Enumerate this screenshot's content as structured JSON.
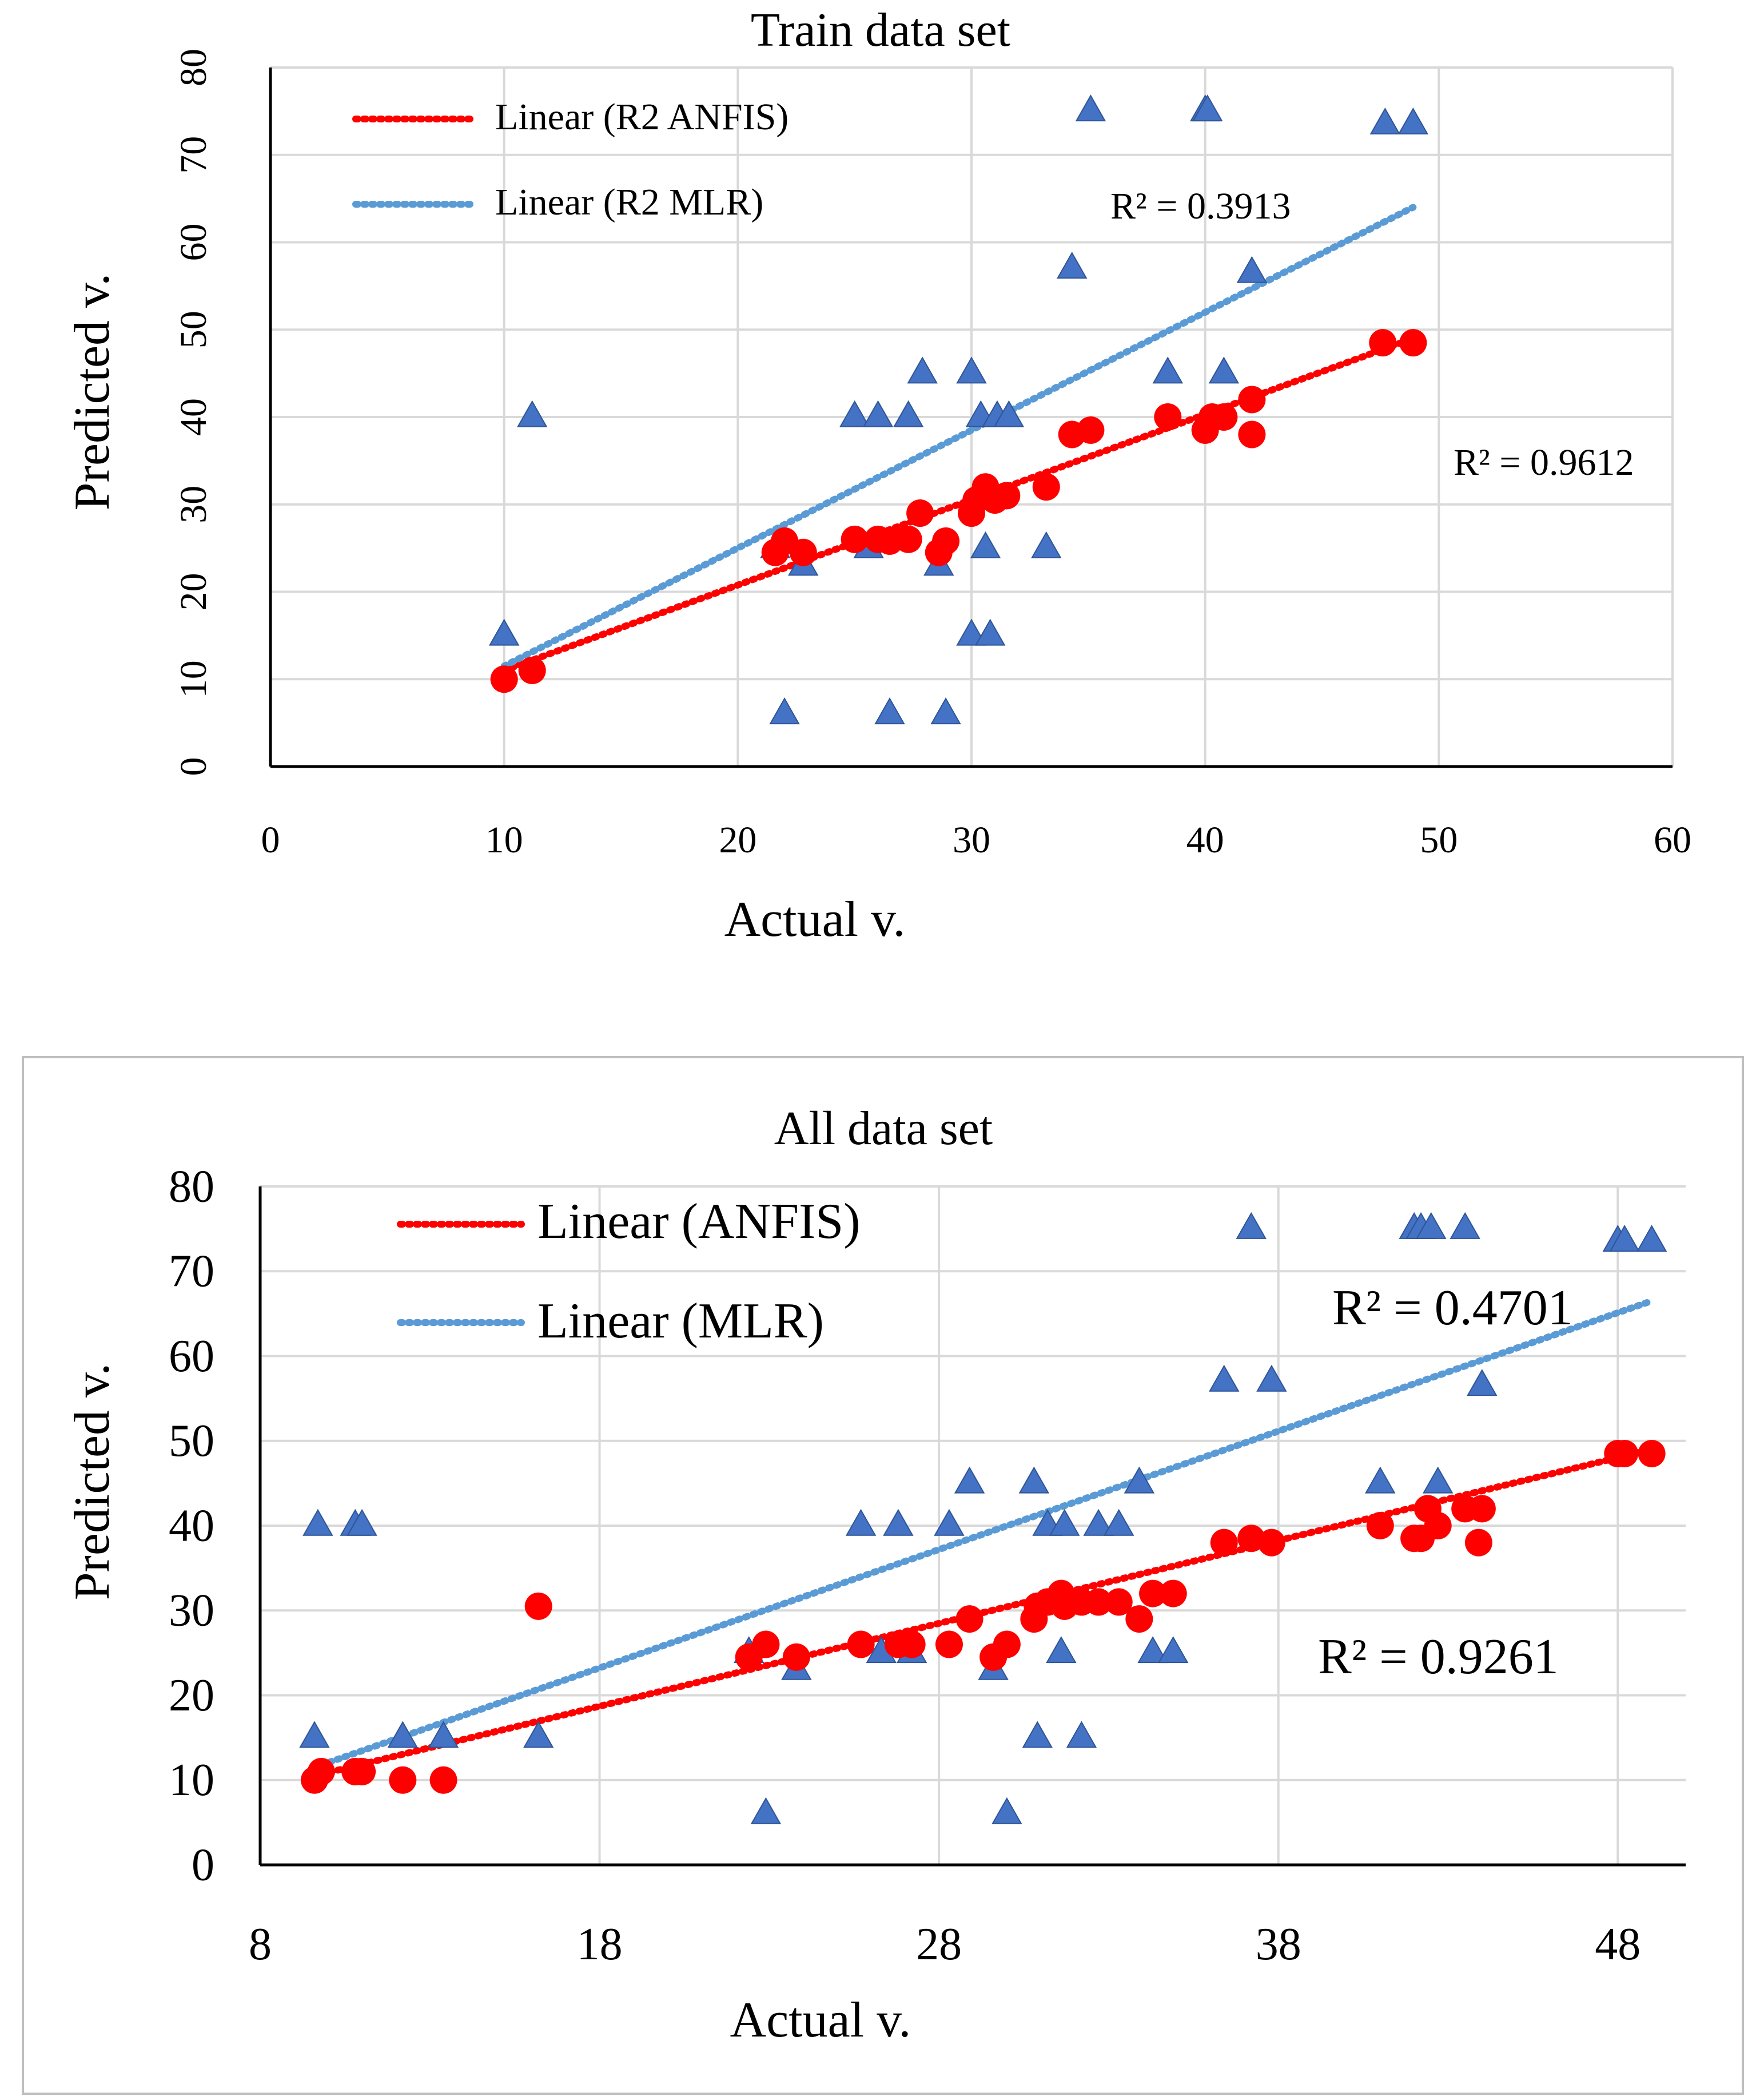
{
  "colors": {
    "anfis": "#ff0000",
    "mlr": "#4472c4",
    "mlr_trend": "#5b9bd5",
    "grid": "#d9d9d9",
    "axis": "#000000",
    "frame": "#bfbfbf"
  },
  "chart_data": [
    {
      "type": "scatter",
      "title": "Train data set",
      "xlabel": "Actual v.",
      "ylabel": "Predicted v.",
      "xlim": [
        0,
        60
      ],
      "ylim": [
        0,
        80
      ],
      "xticks": [
        0,
        10,
        20,
        30,
        40,
        50,
        60
      ],
      "yticks": [
        0,
        10,
        20,
        30,
        40,
        50,
        60,
        70,
        80
      ],
      "vertical_grid": true,
      "ytick_rotated": true,
      "legend_position": "top-left",
      "series": [
        {
          "name": "R2 ANFIS",
          "marker": "circle",
          "color": "#ff0000",
          "x": [
            10,
            11.2,
            21.6,
            22,
            22.8,
            25,
            26,
            26.5,
            27.3,
            27.8,
            28.6,
            28.9,
            30,
            30.2,
            30.6,
            31,
            31.5,
            33.2,
            34.3,
            35.1,
            38.4,
            40,
            40.3,
            40.8,
            42,
            42,
            47.6,
            48.9
          ],
          "y": [
            10,
            11,
            24.5,
            25.8,
            24.5,
            26,
            26,
            25.8,
            26,
            29,
            24.5,
            25.8,
            29,
            30.5,
            32,
            30.5,
            31,
            32,
            38,
            38.5,
            40,
            38.5,
            40,
            40,
            42,
            38,
            48.5,
            48.5
          ]
        },
        {
          "name": "R2 MLR",
          "marker": "triangle",
          "color": "#4472c4",
          "x": [
            10,
            11.2,
            21.6,
            22,
            22.8,
            25,
            25.6,
            26,
            26.5,
            27.3,
            27.9,
            28.6,
            28.9,
            30,
            30,
            30.4,
            30.6,
            30.8,
            31.1,
            31.6,
            33.2,
            34.3,
            35.1,
            38.4,
            40,
            40.1,
            40.8,
            42,
            47.7,
            48.9
          ],
          "y": [
            15,
            40,
            25,
            6,
            23,
            40,
            25,
            40,
            6,
            40,
            45,
            23,
            6,
            15,
            45,
            40,
            25,
            15,
            40,
            40,
            25,
            57,
            75,
            45,
            75,
            75,
            45,
            56.5,
            73.5,
            73.5
          ]
        }
      ],
      "trendlines": [
        {
          "label": "Linear (R2 ANFIS)",
          "series": "R2 ANFIS",
          "x": [
            10,
            48.9
          ],
          "y": [
            11,
            49
          ],
          "r2_label": "R² = 0.9612"
        },
        {
          "label": "Linear (R2 MLR)",
          "series": "R2 MLR",
          "x": [
            10,
            48.9
          ],
          "y": [
            11.5,
            64
          ],
          "r2_label": "R² = 0.3913"
        }
      ]
    },
    {
      "type": "scatter",
      "title": "All data set",
      "xlabel": "Actual v.",
      "ylabel": "Predicted v.",
      "xlim": [
        8,
        50
      ],
      "ylim": [
        0,
        80
      ],
      "xticks": [
        8,
        18,
        28,
        38,
        48
      ],
      "yticks": [
        0,
        10,
        20,
        30,
        40,
        50,
        60,
        70,
        80
      ],
      "vertical_grid": true,
      "ytick_rotated": false,
      "framed": true,
      "legend_position": "top-left",
      "series": [
        {
          "name": "ANFIS",
          "marker": "circle",
          "color": "#ff0000",
          "x": [
            9.6,
            9.8,
            10.8,
            11,
            12.2,
            13.4,
            16.2,
            22.4,
            22.9,
            23.8,
            25.7,
            26.8,
            27.2,
            28.3,
            28.9,
            29.6,
            30,
            30.8,
            30.9,
            31.2,
            31.6,
            31.7,
            32.2,
            32.7,
            33.3,
            33.9,
            34.3,
            34.9,
            36.4,
            37.2,
            37.8,
            41,
            42,
            42.2,
            42.4,
            42.7,
            43.5,
            43.9,
            44,
            48,
            48.2,
            49
          ],
          "y": [
            10,
            11,
            11,
            11,
            10,
            10,
            30.5,
            24.5,
            26,
            24.5,
            26,
            26,
            26,
            26,
            29,
            24.5,
            26,
            29,
            30.5,
            31,
            32,
            30.5,
            31,
            31,
            31,
            29,
            32,
            32,
            38,
            38.5,
            38,
            40,
            38.5,
            38.5,
            42,
            40,
            42,
            38,
            42,
            48.5,
            48.5,
            48.5
          ]
        },
        {
          "name": "MLR",
          "marker": "triangle",
          "color": "#4472c4",
          "x": [
            9.6,
            9.7,
            10.8,
            11,
            12.2,
            13.4,
            16.2,
            22.4,
            22.9,
            23.8,
            25.7,
            26.3,
            26.8,
            27.2,
            28.3,
            28.9,
            29.6,
            30,
            30.8,
            30.9,
            31.2,
            31.6,
            31.7,
            32.2,
            32.7,
            33.3,
            33.9,
            34.3,
            34.9,
            36.4,
            37.2,
            37.8,
            41,
            42,
            42.2,
            42.5,
            42.7,
            43.5,
            44,
            48,
            48.2,
            49
          ],
          "y": [
            15,
            40,
            40,
            40,
            15,
            15,
            15,
            25,
            6,
            23,
            40,
            25,
            40,
            25,
            40,
            45,
            23,
            6,
            45,
            15,
            40,
            25,
            40,
            15,
            40,
            40,
            45,
            25,
            25,
            57,
            75,
            57,
            45,
            75,
            75,
            75,
            45,
            75,
            56.5,
            73.5,
            73.5,
            73.5
          ]
        }
      ],
      "trendlines": [
        {
          "label": "Linear (ANFIS)",
          "series": "ANFIS",
          "x": [
            9.6,
            49
          ],
          "y": [
            10.5,
            49
          ],
          "r2_label": "R² = 0.9261"
        },
        {
          "label": "Linear (MLR)",
          "series": "MLR",
          "x": [
            9.6,
            49
          ],
          "y": [
            11.5,
            66.5
          ],
          "r2_label": "R² = 0.4701"
        }
      ]
    }
  ]
}
